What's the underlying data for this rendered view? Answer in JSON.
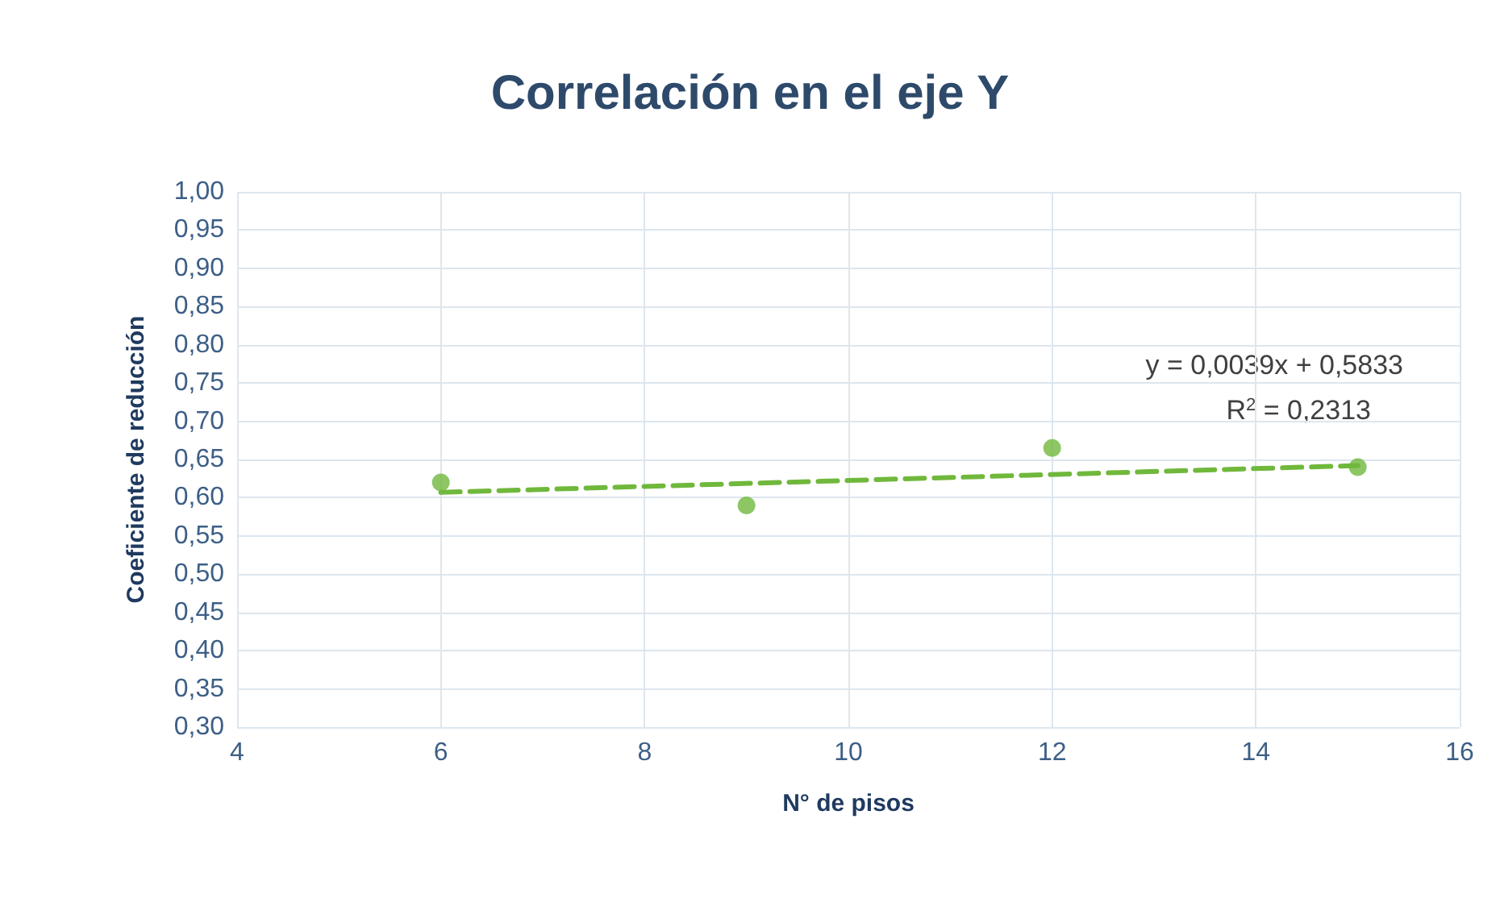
{
  "chart_data": {
    "type": "scatter",
    "title": "Correlación en el eje Y",
    "xlabel": "N° de pisos",
    "ylabel": "Coeficiente de reducción",
    "series": [
      {
        "color": "#70b83c",
        "marker": "circle",
        "x": [
          6,
          9,
          12,
          15
        ],
        "values": [
          0.62,
          0.59,
          0.665,
          0.64
        ]
      },
      {
        "type": "line",
        "color": "#70b83c",
        "marker": "none",
        "line_style": "dashed",
        "x": [
          6,
          15
        ],
        "values": [
          0.607,
          0.642
        ]
      }
    ],
    "xlim": [
      4,
      16
    ],
    "xticks": [
      4,
      6,
      8,
      10,
      12,
      14,
      16
    ],
    "ylim": [
      0.3,
      1.0
    ],
    "yticks": [
      {
        "value": 0.3,
        "label": "0,30"
      },
      {
        "value": 0.35,
        "label": "0,35"
      },
      {
        "value": 0.4,
        "label": "0,40"
      },
      {
        "value": 0.45,
        "label": "0,45"
      },
      {
        "value": 0.5,
        "label": "0,50"
      },
      {
        "value": 0.55,
        "label": "0,55"
      },
      {
        "value": 0.6,
        "label": "0,60"
      },
      {
        "value": 0.65,
        "label": "0,65"
      },
      {
        "value": 0.7,
        "label": "0,70"
      },
      {
        "value": 0.75,
        "label": "0,75"
      },
      {
        "value": 0.8,
        "label": "0,80"
      },
      {
        "value": 0.85,
        "label": "0,85"
      },
      {
        "value": 0.9,
        "label": "0,90"
      },
      {
        "value": 0.95,
        "label": "0,95"
      },
      {
        "value": 1.0,
        "label": "1,00"
      }
    ],
    "grid": true,
    "annotations": [
      "y = 0,0039x + 0,5833",
      "R$^{2}$ = 0,2313"
    ]
  }
}
